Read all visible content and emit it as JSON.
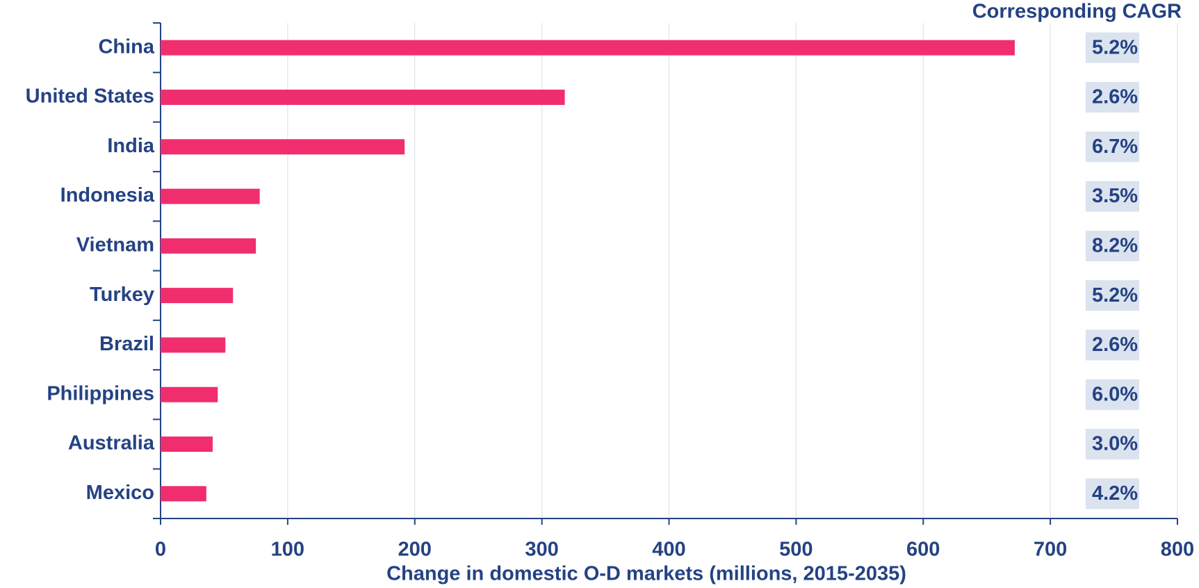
{
  "chart_data": {
    "type": "bar",
    "orientation": "horizontal",
    "xlabel": "Change in domestic O-D markets (millions, 2015-2035)",
    "categories": [
      "China",
      "United States",
      "India",
      "Indonesia",
      "Vietnam",
      "Turkey",
      "Brazil",
      "Philippines",
      "Australia",
      "Mexico"
    ],
    "values": [
      672,
      318,
      192,
      78,
      75,
      57,
      51,
      45,
      41,
      36
    ],
    "color": "#f02e6e",
    "xlim": [
      0,
      800
    ],
    "xticks": [
      0,
      100,
      200,
      300,
      400,
      500,
      600,
      700,
      800
    ],
    "grid": true,
    "cagr": {
      "title": "Corresponding CAGR",
      "labels": [
        "5.2%",
        "2.6%",
        "6.7%",
        "3.5%",
        "8.2%",
        "5.2%",
        "2.6%",
        "6.0%",
        "3.0%",
        "4.2%"
      ]
    }
  }
}
